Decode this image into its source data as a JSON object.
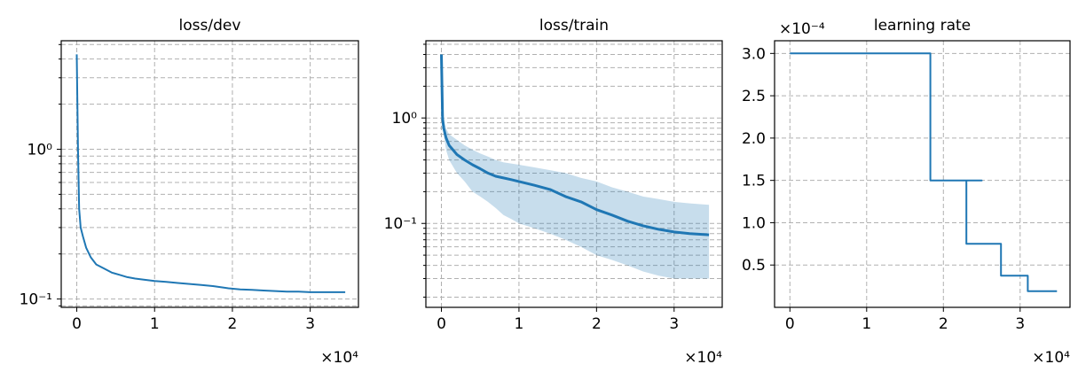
{
  "chart_data": [
    {
      "id": "loss-dev",
      "type": "line",
      "title": "loss/dev",
      "xlabel": "",
      "ylabel": "",
      "x_multiplier": "×10⁴",
      "yscale": "log",
      "xlim": [
        -2000,
        36200
      ],
      "ylim": [
        0.088,
        5.3
      ],
      "xticks": [
        0,
        10000,
        20000,
        30000
      ],
      "xtick_labels": [
        "0",
        "1",
        "2",
        "3"
      ],
      "yticks_major": [
        0.1,
        1
      ],
      "ytick_labels": [
        "10⁻¹",
        "10⁰"
      ],
      "grid": true,
      "series": [
        {
          "color": "#1f77b4",
          "x": [
            0,
            150,
            300,
            500,
            800,
            1200,
            1800,
            2500,
            3500,
            4500,
            5500,
            6500,
            7500,
            8500,
            10000,
            11500,
            13000,
            14500,
            16000,
            17500,
            18500,
            19500,
            21000,
            22500,
            24000,
            25500,
            27000,
            28500,
            30000,
            31500,
            33000,
            34500
          ],
          "y": [
            4.3,
            1.0,
            0.4,
            0.3,
            0.26,
            0.22,
            0.19,
            0.17,
            0.16,
            0.15,
            0.145,
            0.14,
            0.137,
            0.135,
            0.132,
            0.13,
            0.128,
            0.126,
            0.124,
            0.122,
            0.12,
            0.118,
            0.116,
            0.115,
            0.114,
            0.113,
            0.112,
            0.112,
            0.111,
            0.111,
            0.111,
            0.111
          ]
        }
      ]
    },
    {
      "id": "loss-train",
      "type": "line",
      "title": "loss/train",
      "xlabel": "",
      "ylabel": "",
      "x_multiplier": "×10⁴",
      "yscale": "log",
      "xlim": [
        -2000,
        36200
      ],
      "ylim": [
        0.016,
        5.4
      ],
      "xticks": [
        0,
        10000,
        20000,
        30000
      ],
      "xtick_labels": [
        "0",
        "1",
        "2",
        "3"
      ],
      "yticks_major": [
        0.1,
        1
      ],
      "ytick_labels": [
        "10⁻¹",
        "10⁰"
      ],
      "grid": true,
      "series": [
        {
          "color": "#1f77b4",
          "x": [
            0,
            150,
            300,
            600,
            1000,
            2000,
            3000,
            4000,
            5000,
            6000,
            7000,
            8000,
            9000,
            10000,
            12000,
            14000,
            16000,
            18000,
            20000,
            22000,
            24000,
            26000,
            28000,
            30000,
            32000,
            34500
          ],
          "y": [
            4.0,
            1.0,
            0.8,
            0.65,
            0.55,
            0.45,
            0.4,
            0.36,
            0.33,
            0.3,
            0.28,
            0.27,
            0.26,
            0.25,
            0.23,
            0.21,
            0.18,
            0.16,
            0.135,
            0.12,
            0.105,
            0.095,
            0.088,
            0.083,
            0.08,
            0.078
          ],
          "band_low": [
            4.0,
            0.9,
            0.7,
            0.5,
            0.4,
            0.3,
            0.25,
            0.2,
            0.18,
            0.16,
            0.14,
            0.12,
            0.11,
            0.1,
            0.09,
            0.08,
            0.07,
            0.06,
            0.05,
            0.045,
            0.04,
            0.035,
            0.032,
            0.03,
            0.03,
            0.03
          ],
          "band_high": [
            4.0,
            1.2,
            0.95,
            0.8,
            0.7,
            0.62,
            0.55,
            0.5,
            0.46,
            0.43,
            0.4,
            0.38,
            0.37,
            0.36,
            0.34,
            0.32,
            0.3,
            0.27,
            0.25,
            0.22,
            0.2,
            0.18,
            0.17,
            0.16,
            0.155,
            0.15
          ]
        }
      ]
    },
    {
      "id": "learning-rate",
      "type": "line",
      "title": "learning rate",
      "xlabel": "",
      "ylabel": "",
      "x_multiplier": "×10⁴",
      "y_multiplier": "×10⁻⁴",
      "xlim": [
        -2000,
        36500
      ],
      "ylim": [
        0.0,
        3.15
      ],
      "xticks": [
        0,
        10000,
        20000,
        30000
      ],
      "xtick_labels": [
        "0",
        "1",
        "2",
        "3"
      ],
      "yticks": [
        0.5,
        1.0,
        1.5,
        2.0,
        2.5,
        3.0
      ],
      "ytick_labels": [
        "0.5",
        "1.0",
        "1.5",
        "2.0",
        "2.5",
        "3.0"
      ],
      "grid": true,
      "series": [
        {
          "color": "#1f77b4",
          "x": [
            0,
            18300,
            18300,
            25000,
            25000,
            23000,
            23000,
            27500,
            27500,
            31000,
            31000,
            34800
          ],
          "y": [
            3.0,
            3.0,
            1.5,
            1.5,
            1.5,
            1.5,
            0.75,
            0.75,
            0.375,
            0.375,
            0.19,
            0.19
          ]
        }
      ]
    }
  ]
}
